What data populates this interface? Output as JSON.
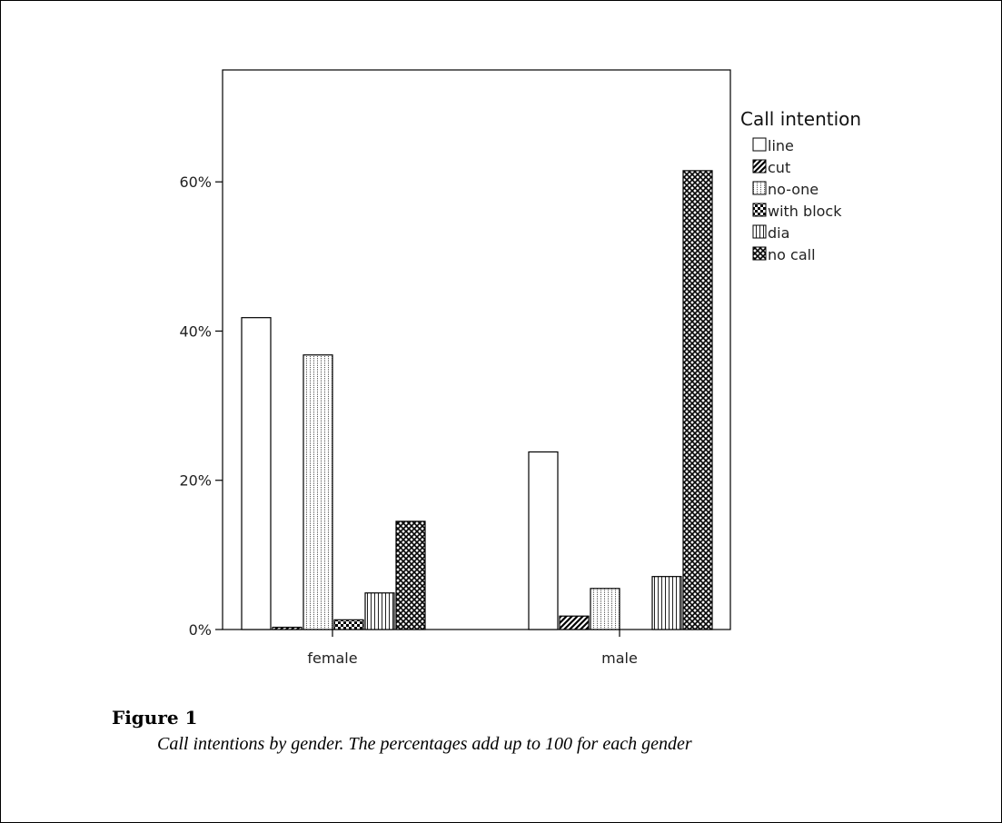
{
  "figure": {
    "title": "Figure 1",
    "caption": "Call intentions by gender. The percentages add up to 100 for each gender"
  },
  "chart_data": {
    "type": "bar",
    "categories": [
      "female",
      "male"
    ],
    "legend_title": "Call intention",
    "legend_position": "right",
    "ylim": [
      0,
      75
    ],
    "y_ticks": [
      0,
      20,
      40,
      60
    ],
    "y_tick_labels": [
      "0%",
      "20%",
      "40%",
      "60%"
    ],
    "grid": false,
    "series": [
      {
        "name": "line",
        "values": [
          41.8,
          23.8
        ],
        "pattern": "none"
      },
      {
        "name": "cut",
        "values": [
          0.3,
          1.8
        ],
        "pattern": "diagonal"
      },
      {
        "name": "no-one",
        "values": [
          36.8,
          5.5
        ],
        "pattern": "dots"
      },
      {
        "name": "with block",
        "values": [
          1.3,
          0.0
        ],
        "pattern": "checker"
      },
      {
        "name": "dia",
        "values": [
          4.9,
          7.1
        ],
        "pattern": "vertical"
      },
      {
        "name": "no call",
        "values": [
          14.5,
          61.5
        ],
        "pattern": "crosshatch"
      }
    ],
    "colors": {
      "stroke": "#000000",
      "fill": "#ffffff"
    }
  }
}
